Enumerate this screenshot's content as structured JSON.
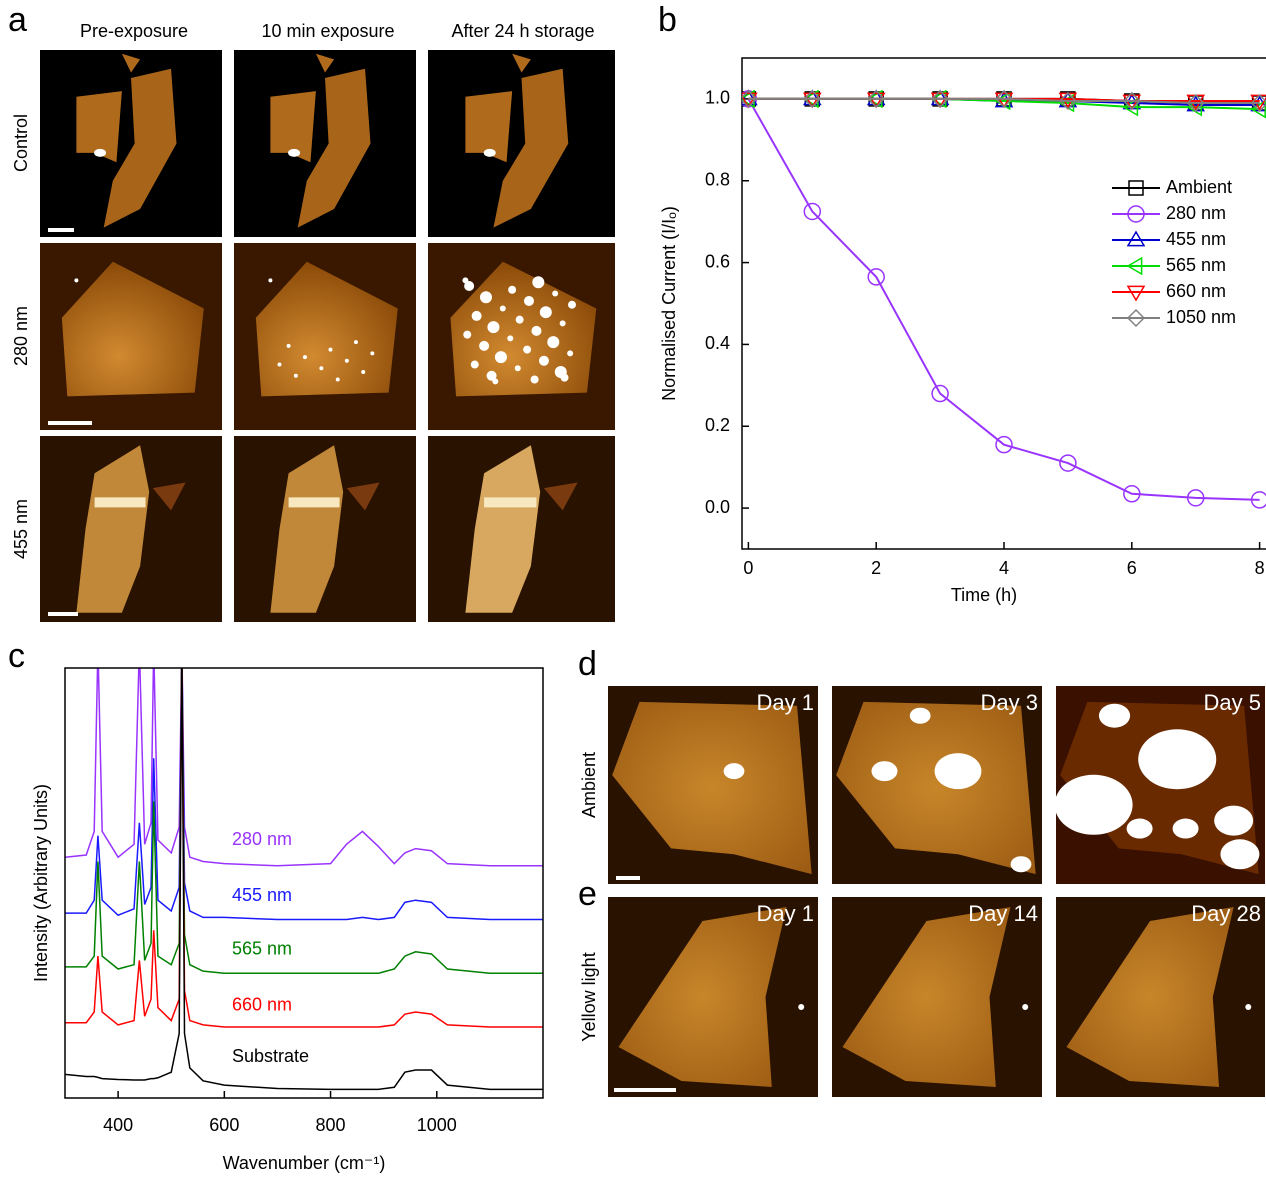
{
  "panel_labels": [
    "a",
    "b",
    "c",
    "d",
    "e"
  ],
  "panel_a": {
    "columns": [
      "Pre-exposure",
      "10 min exposure",
      "After 24 h storage"
    ],
    "rows": [
      "Control",
      "280 nm",
      "455 nm"
    ]
  },
  "panel_de": {
    "rows": [
      "Ambient",
      "Yellow light"
    ],
    "days": [
      [
        "Day 1",
        "Day 3",
        "Day 5"
      ],
      [
        "Day 1",
        "Day 14",
        "Day 28"
      ]
    ]
  },
  "chart_data": [
    {
      "type": "line",
      "x_label": "Time (h)",
      "y_label": "Normalised Current (I/Iₒ)",
      "x": [
        0,
        1,
        2,
        3,
        4,
        5,
        6,
        7,
        8
      ],
      "xlim": [
        -0.1,
        8.1
      ],
      "xticks": [
        0,
        2,
        4,
        6,
        8
      ],
      "ylim": [
        -0.1,
        1.1
      ],
      "yticks": [
        {
          "value": 0,
          "label": "0.0"
        },
        0.2,
        0.4,
        0.6,
        0.8,
        {
          "value": 1,
          "label": "1.0"
        }
      ],
      "series": [
        {
          "name": "Ambient",
          "color": "#000000",
          "marker": "square",
          "values": [
            1,
            1,
            1,
            1,
            1,
            1,
            0.995,
            0.99,
            0.99
          ]
        },
        {
          "name": "280 nm",
          "color": "#9933ff",
          "marker": "circle",
          "values": [
            1,
            0.725,
            0.565,
            0.28,
            0.155,
            0.11,
            0.035,
            0.025,
            0.02
          ]
        },
        {
          "name": "455 nm",
          "color": "#0000cc",
          "marker": "triangle-up",
          "values": [
            1,
            1,
            1,
            1,
            0.995,
            0.995,
            0.99,
            0.985,
            0.985
          ]
        },
        {
          "name": "565 nm",
          "color": "#00dd00",
          "marker": "triangle-left",
          "values": [
            1,
            1,
            1,
            1,
            0.995,
            0.99,
            0.98,
            0.98,
            0.975
          ]
        },
        {
          "name": "660 nm",
          "color": "#ff0000",
          "marker": "triangle-down",
          "values": [
            1,
            1,
            1,
            1,
            1,
            1,
            0.995,
            0.995,
            0.995
          ]
        },
        {
          "name": "1050 nm",
          "color": "#808080",
          "marker": "diamond",
          "values": [
            1,
            1,
            1,
            1,
            1,
            0.995,
            0.995,
            0.99,
            0.99
          ]
        }
      ]
    },
    {
      "type": "spectra",
      "x_label": "Wavenumber (cm⁻¹)",
      "y_label": "Intensity (Arbitrary Units)",
      "x": [
        300,
        340,
        355,
        362,
        370,
        400,
        430,
        440,
        450,
        462,
        467,
        475,
        500,
        515,
        520,
        525,
        535,
        560,
        600,
        700,
        800,
        830,
        860,
        890,
        920,
        940,
        960,
        990,
        1020,
        1100,
        1200
      ],
      "xlim": [
        300,
        1200
      ],
      "xticks": [
        400,
        600,
        800,
        1000
      ],
      "ylim": [
        0,
        10
      ],
      "series": [
        {
          "name": "280 nm",
          "color": "#9933ff",
          "values": [
            5.6,
            5.65,
            6.2,
            10.5,
            6.2,
            5.6,
            5.9,
            10.5,
            5.9,
            6.4,
            10.5,
            6.0,
            5.7,
            6.3,
            10.5,
            6.3,
            5.6,
            5.5,
            5.45,
            5.4,
            5.45,
            5.9,
            6.2,
            5.85,
            5.45,
            5.7,
            5.8,
            5.75,
            5.45,
            5.4,
            5.4
          ]
        },
        {
          "name": "455 nm",
          "color": "#1a1aff",
          "values": [
            4.3,
            4.3,
            4.6,
            6.1,
            4.6,
            4.25,
            4.4,
            6.4,
            4.5,
            4.9,
            7.9,
            4.6,
            4.35,
            4.9,
            10.5,
            5.0,
            4.35,
            4.2,
            4.2,
            4.15,
            4.15,
            4.15,
            4.2,
            4.15,
            4.2,
            4.55,
            4.6,
            4.55,
            4.2,
            4.15,
            4.15
          ]
        },
        {
          "name": "565 nm",
          "color": "#008000",
          "values": [
            3.05,
            3.05,
            3.3,
            5.5,
            3.3,
            3.0,
            3.1,
            5.5,
            3.2,
            3.6,
            6.9,
            3.3,
            3.1,
            3.6,
            10.5,
            3.8,
            3.1,
            2.95,
            2.9,
            2.9,
            2.9,
            2.9,
            2.9,
            2.9,
            3.0,
            3.3,
            3.4,
            3.35,
            3.0,
            2.9,
            2.9
          ]
        },
        {
          "name": "660 nm",
          "color": "#ff0000",
          "values": [
            1.75,
            1.75,
            2.0,
            3.3,
            2.0,
            1.7,
            1.8,
            3.2,
            1.9,
            2.3,
            3.9,
            2.1,
            1.8,
            2.3,
            10.5,
            2.5,
            1.8,
            1.7,
            1.65,
            1.65,
            1.65,
            1.65,
            1.65,
            1.65,
            1.7,
            1.95,
            2.0,
            1.95,
            1.7,
            1.65,
            1.65
          ]
        },
        {
          "name": "Substrate",
          "color": "#000000",
          "values": [
            0.55,
            0.5,
            0.5,
            0.48,
            0.45,
            0.43,
            0.42,
            0.42,
            0.42,
            0.45,
            0.45,
            0.47,
            0.6,
            1.5,
            10.5,
            1.5,
            0.7,
            0.4,
            0.3,
            0.22,
            0.2,
            0.2,
            0.2,
            0.2,
            0.25,
            0.6,
            0.65,
            0.65,
            0.3,
            0.2,
            0.2
          ]
        }
      ]
    }
  ]
}
